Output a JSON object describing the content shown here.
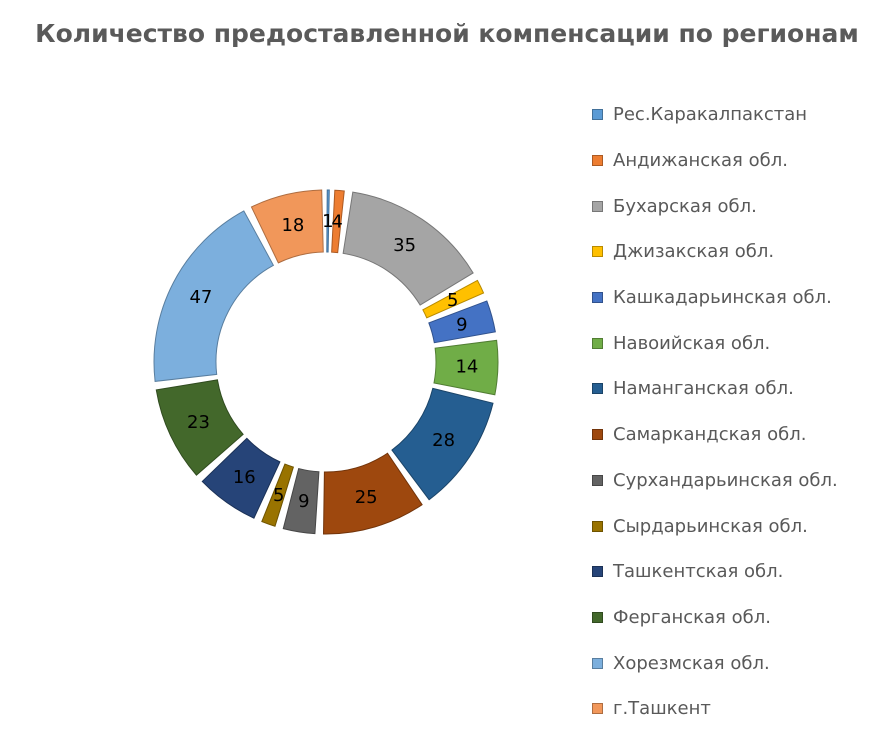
{
  "chart_data": {
    "type": "pie",
    "variant": "exploded-doughnut",
    "title": "Количество предоставленной компенсации по регионам",
    "legend_position": "right",
    "categories": [
      "Рес.Каракалпакстан",
      "Андижанская обл.",
      "Бухарская обл.",
      "Джизакская обл.",
      "Кашкадарьинская обл.",
      "Навоийская обл.",
      "Наманганская обл.",
      "Самаркандская обл.",
      "Сурхандарьинская обл.",
      "Сырдарьинская обл.",
      "Ташкентская обл.",
      "Ферганская обл.",
      "Хорезмская обл.",
      "г.Ташкент"
    ],
    "values": [
      1,
      4,
      35,
      5,
      9,
      14,
      28,
      25,
      9,
      5,
      16,
      23,
      47,
      18
    ],
    "data_labels": [
      "1",
      "4",
      "35",
      "5",
      "9",
      "14",
      "28",
      "25",
      "9",
      "5",
      "16",
      "23",
      "47",
      "18"
    ],
    "colors": [
      "#5B9BD5",
      "#ED7D31",
      "#A5A5A5",
      "#FFC000",
      "#4472C4",
      "#70AD47",
      "#255E91",
      "#9E480E",
      "#636363",
      "#997300",
      "#264478",
      "#43682B",
      "#7CAFDD",
      "#F1975A"
    ],
    "label_colors": [
      "#000000",
      "#000000",
      "#000000",
      "#000000",
      "#ffffff",
      "#000000",
      "#ffffff",
      "#000000",
      "#000000",
      "#000000",
      "#ffffff",
      "#000000",
      "#000000",
      "#000000"
    ]
  }
}
